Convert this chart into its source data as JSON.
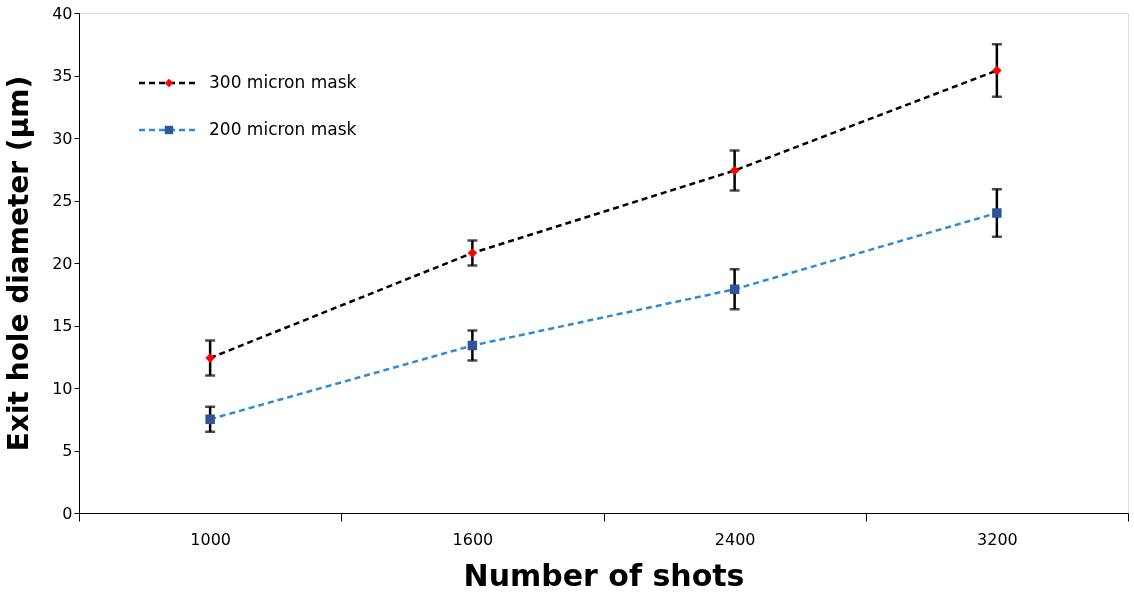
{
  "chart_data": {
    "type": "line",
    "xlabel": "Number of shots",
    "ylabel": "Exit hole diameter (µm)",
    "categories": [
      "1000",
      "1600",
      "2400",
      "3200"
    ],
    "ylim": [
      0,
      40
    ],
    "yticks": [
      0,
      5,
      10,
      15,
      20,
      25,
      30,
      35,
      40
    ],
    "line_style": "dashed",
    "grid": false,
    "legend": "top left",
    "series": [
      {
        "name": "300 micron mask",
        "color": "#000000",
        "colors": [
          "#ff0000",
          "#ff0000",
          "#ff0000",
          "#ff0000"
        ],
        "marker": "diamond",
        "values": [
          12.4,
          20.8,
          27.4,
          35.4
        ],
        "errors": [
          1.4,
          1.0,
          1.6,
          2.1
        ]
      },
      {
        "name": "200 micron mask",
        "color": "#2e8bd6",
        "colors": [
          "#2f5597",
          "#2f5597",
          "#2f5597",
          "#2f5597"
        ],
        "marker": "square",
        "values": [
          7.5,
          13.4,
          17.9,
          24.0
        ],
        "errors": [
          1.0,
          1.2,
          1.6,
          1.9
        ]
      }
    ]
  }
}
